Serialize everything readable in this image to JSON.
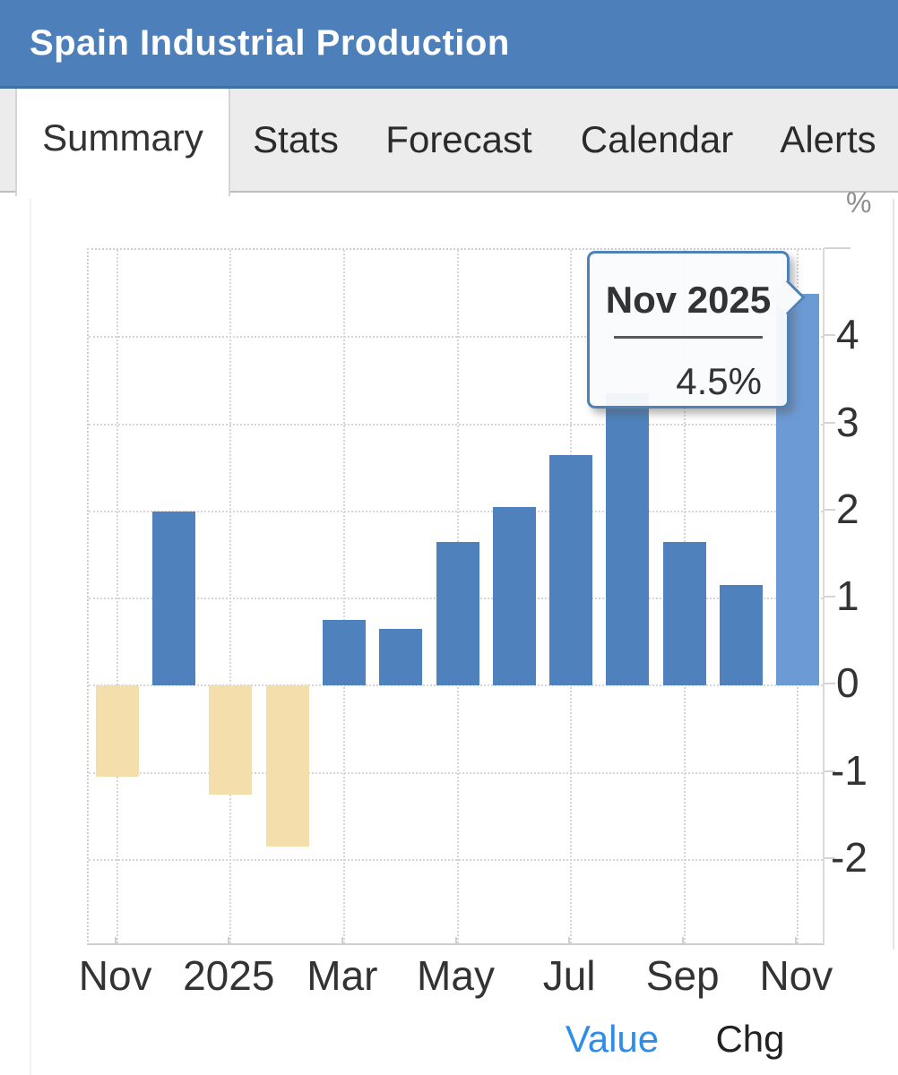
{
  "header": {
    "title": "Spain Industrial Production",
    "bg": "#4D80BB"
  },
  "tabs": {
    "items": [
      {
        "label": "Summary",
        "active": true
      },
      {
        "label": "Stats",
        "active": false
      },
      {
        "label": "Forecast",
        "active": false
      },
      {
        "label": "Calendar",
        "active": false
      },
      {
        "label": "Alerts",
        "active": false
      }
    ]
  },
  "tooltip": {
    "title": "Nov 2025",
    "value": "4.5%"
  },
  "legend": {
    "items": [
      {
        "label": "Value",
        "color": "#2F8DE8",
        "active": true
      },
      {
        "label": "Chg",
        "color": "#222222",
        "active": false
      }
    ]
  },
  "chart_data": {
    "type": "bar",
    "title": "Spain Industrial Production",
    "ylabel": "%",
    "x": [
      "Nov 2024",
      "Dec 2024",
      "Jan 2025",
      "Feb 2025",
      "Mar 2025",
      "Apr 2025",
      "May 2025",
      "Jun 2025",
      "Jul 2025",
      "Aug 2025",
      "Sep 2025",
      "Oct 2025",
      "Nov 2025"
    ],
    "values": [
      -1.05,
      2.0,
      -1.25,
      -1.85,
      0.75,
      0.65,
      1.65,
      2.05,
      2.65,
      3.35,
      1.65,
      1.15,
      4.5
    ],
    "highlight_index": 12,
    "highlight_label": "Nov 2025",
    "highlight_value": "4.5%",
    "xtick_labels": [
      "Nov",
      "2025",
      "Mar",
      "May",
      "Jul",
      "Sep",
      "Nov"
    ],
    "xtick_indices": [
      0,
      2,
      4,
      6,
      8,
      10,
      12
    ],
    "ytick_labels": [
      4,
      3,
      2,
      1,
      0,
      -1,
      -2
    ],
    "ytick_marks": [
      5,
      4,
      3,
      2,
      1,
      0,
      -1,
      -2
    ],
    "ylim": [
      -3,
      5
    ],
    "grid": true,
    "legend_position": "bottom",
    "colors": {
      "positive": "#4F81BC",
      "negative": "#F3DEAC",
      "highlight": "#6C9AD4"
    }
  }
}
